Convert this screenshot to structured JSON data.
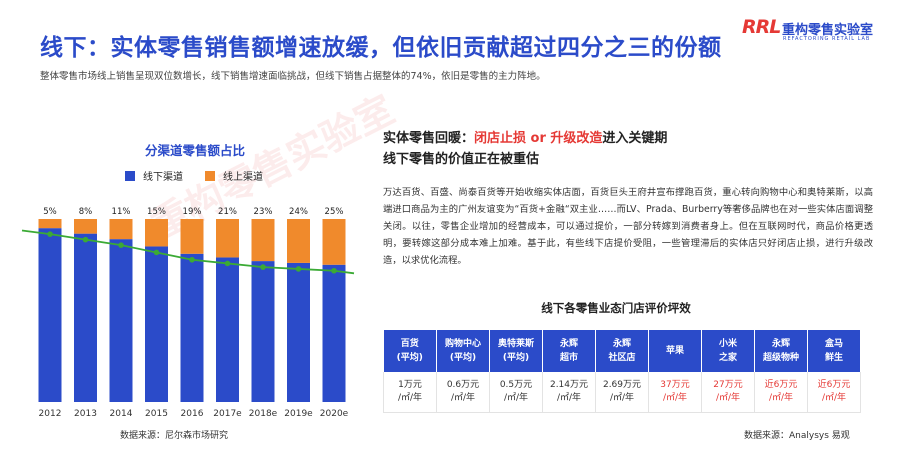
{
  "header": {
    "title": "线下：实体零售销售额增速放缓，但依旧贡献超过四分之三的份额",
    "subtitle": "整体零售市场线上销售呈现双位数增长，线下销售增速面临挑战，但线下销售占据整体的74%，依旧是零售的主力阵地。"
  },
  "logo": {
    "mark": "RRL",
    "name_cn": "重构零售实验室",
    "name_en": "REFACTORING RETAIL LAB"
  },
  "watermark": "重构零售实验室",
  "chart_data": {
    "type": "bar",
    "stacked": true,
    "title": "分渠道零售额占比",
    "categories": [
      "2012",
      "2013",
      "2014",
      "2015",
      "2016",
      "2017e",
      "2018e",
      "2019e",
      "2020e"
    ],
    "series": [
      {
        "name": "线下渠道",
        "values": [
          95,
          92,
          89,
          85,
          81,
          79,
          77,
          76,
          75
        ],
        "color": "#2B4BC9"
      },
      {
        "name": "线上渠道",
        "values": [
          5,
          8,
          11,
          15,
          19,
          21,
          23,
          24,
          25
        ],
        "color": "#F08A2C"
      }
    ],
    "data_labels": [
      "5%",
      "8%",
      "11%",
      "15%",
      "19%",
      "21%",
      "23%",
      "24%",
      "25%"
    ],
    "trend_line": {
      "color": "#3BAA35",
      "follows": "线下渠道"
    },
    "ylim": [
      0,
      100
    ],
    "source": "数据来源：尼尔森市场研究"
  },
  "right": {
    "title_line1_prefix": "实体零售回暖：",
    "title_line1_highlight": "闭店止损 or 升级改造",
    "title_line1_suffix": "进入关键期",
    "title_line2": "线下零售的价值正在被重估",
    "body": "万达百货、百盛、尚泰百货等开始收缩实体店面，百货巨头王府井宣布撑跑百货，重心转向购物中心和奥特莱斯，以高端进口商品为主的广州友谊变为“百货+金融“双主业……而LV、Prada、Burberry等奢侈品牌也在对一些实体店面调整关闭。以往，零售企业增加的经营成本，可以通过提价，一部分转嫁到消费者身上。但在互联网时代，商品价格更透明，要转嫁这部分成本难上加难。基于此，有些线下店提价受阻，一些管理滞后的实体店只好闭店止损，进行升级改造，以求优化流程。"
  },
  "table": {
    "title": "线下各零售业态门店评价坪效",
    "headers": [
      [
        "百货",
        "(平均)"
      ],
      [
        "购物中心",
        "(平均)"
      ],
      [
        "奥特莱斯",
        "(平均)"
      ],
      [
        "永辉",
        "超市"
      ],
      [
        "永辉",
        "社区店"
      ],
      [
        "苹果",
        ""
      ],
      [
        "小米",
        "之家"
      ],
      [
        "永辉",
        "超级物种"
      ],
      [
        "盒马",
        "鲜生"
      ]
    ],
    "values": [
      [
        "1万元",
        "/㎡/年"
      ],
      [
        "0.6万元",
        "/㎡/年"
      ],
      [
        "0.5万元",
        "/㎡/年"
      ],
      [
        "2.14万元",
        "/㎡/年"
      ],
      [
        "2.69万元",
        "/㎡/年"
      ],
      [
        "37万元",
        "/㎡/年"
      ],
      [
        "27万元",
        "/㎡/年"
      ],
      [
        "近6万元",
        "/㎡/年"
      ],
      [
        "近6万元",
        "/㎡/年"
      ]
    ],
    "highlight_color": "#E53935",
    "source": "数据来源：Analysys 易观"
  },
  "colors": {
    "brand": "#2B4BC9",
    "accent": "#E53935",
    "orange": "#F08A2C",
    "green": "#3BAA35"
  }
}
